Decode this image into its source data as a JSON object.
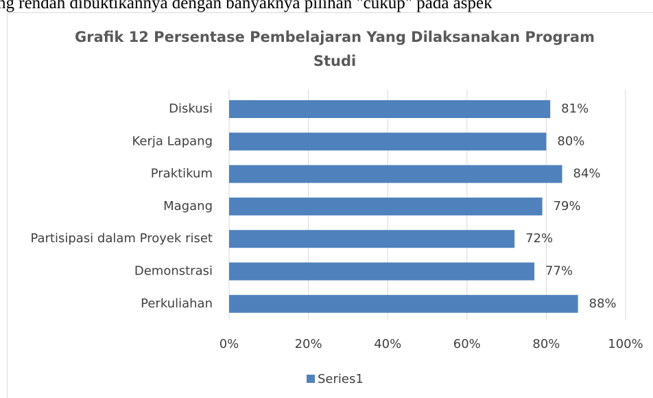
{
  "document_text": "ng rendah dibuktikannya dengan banyaknya pilihan \"cukup\" pada aspek",
  "chart_data": {
    "type": "bar",
    "orientation": "horizontal",
    "title": "Grafik 12 Persentase Pembelajaran Yang Dilaksanakan Program Studi",
    "categories": [
      "Diskusi",
      "Kerja Lapang",
      "Praktikum",
      "Magang",
      "Partisipasi dalam Proyek riset",
      "Demonstrasi",
      "Perkuliahan"
    ],
    "series": [
      {
        "name": "Series1",
        "color": "#4f81bd",
        "values": [
          81,
          80,
          84,
          79,
          72,
          77,
          88
        ],
        "value_labels": [
          "81%",
          "80%",
          "84%",
          "79%",
          "72%",
          "77%",
          "88%"
        ]
      }
    ],
    "xlim": [
      0,
      100
    ],
    "xticks": [
      {
        "value": 0,
        "label": "0%"
      },
      {
        "value": 20,
        "label": "20%"
      },
      {
        "value": 40,
        "label": "40%"
      },
      {
        "value": 60,
        "label": "60%"
      },
      {
        "value": 80,
        "label": "80%"
      },
      {
        "value": 100,
        "label": "100%"
      }
    ],
    "grid": true,
    "legend": "bottom"
  }
}
